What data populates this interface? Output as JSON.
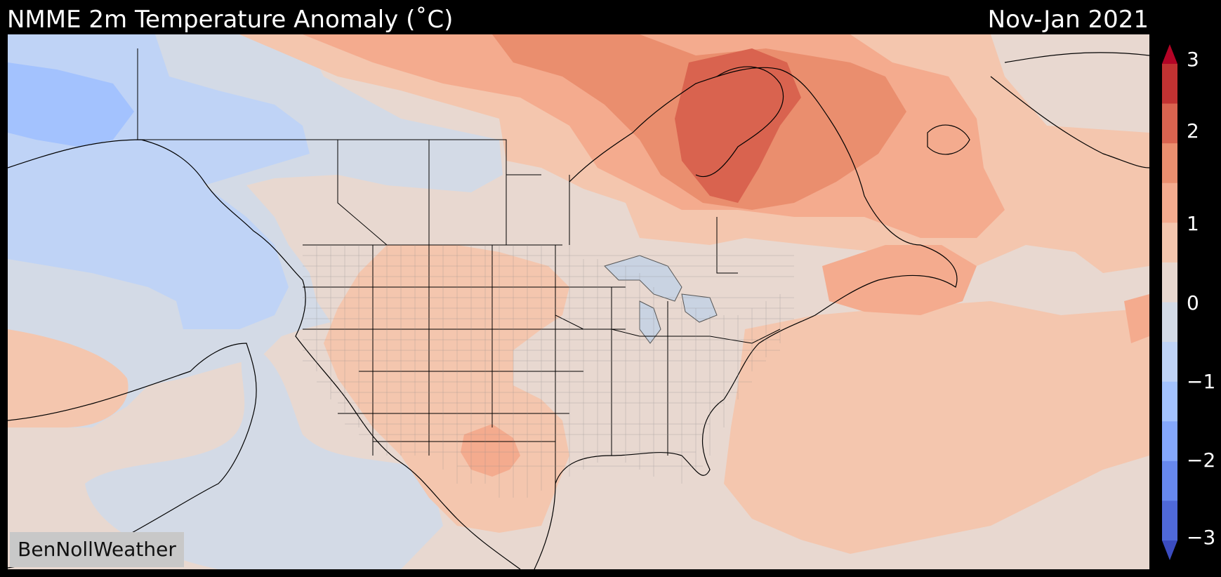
{
  "header": {
    "title": "NMME 2m Temperature Anomaly (˚C)",
    "period": "Nov-Jan 2021"
  },
  "colorbar": {
    "tick_labels": [
      "3",
      "2",
      "1",
      "0",
      "−1",
      "−2",
      "−3"
    ],
    "range": [
      -3,
      3
    ],
    "step": 0.5,
    "extends": "both",
    "colors_low_to_high": [
      "#3b4cc0",
      "#4f69d9",
      "#6788ee",
      "#84a7fc",
      "#a3c2fe",
      "#bfd3f6",
      "#d3dae6",
      "#e8d8d0",
      "#f4c6ae",
      "#f4ab8e",
      "#ea8e6e",
      "#d9634f",
      "#c23232",
      "#b40426"
    ]
  },
  "map": {
    "region": "North America",
    "ocean_color": "#d1dbe7",
    "features": [
      "coastlines",
      "country borders",
      "state borders",
      "county lines"
    ]
  },
  "watermark": {
    "text": "BenNollWeather"
  }
}
